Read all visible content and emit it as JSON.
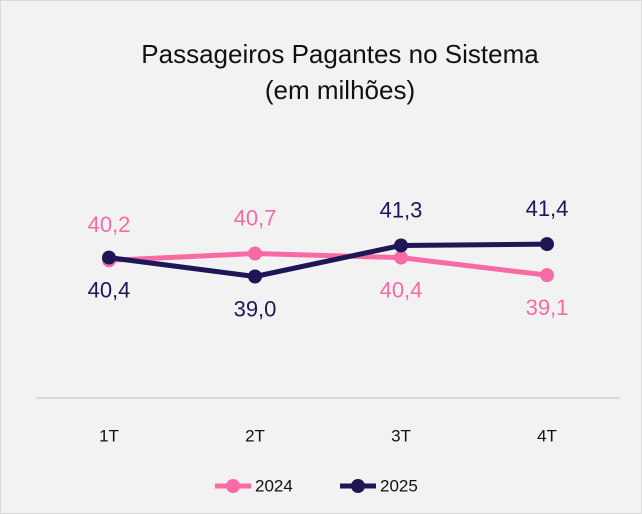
{
  "chart_data": {
    "type": "line",
    "title": "Passageiros Pagantes no Sistema",
    "subtitle": "(em milhões)",
    "categories": [
      "1T",
      "2T",
      "3T",
      "4T"
    ],
    "series": [
      {
        "name": "2024",
        "color": "#f76aa4",
        "values": [
          40.2,
          40.7,
          40.4,
          39.1
        ],
        "value_labels": [
          "40,2",
          "40,7",
          "40,4",
          "39,1"
        ]
      },
      {
        "name": "2025",
        "color": "#1f1656",
        "values": [
          40.4,
          39.0,
          41.3,
          41.4
        ],
        "value_labels": [
          "40,4",
          "39,0",
          "41,3",
          "41,4"
        ]
      }
    ],
    "ylim": [
      30,
      50
    ],
    "legend": "bottom"
  }
}
